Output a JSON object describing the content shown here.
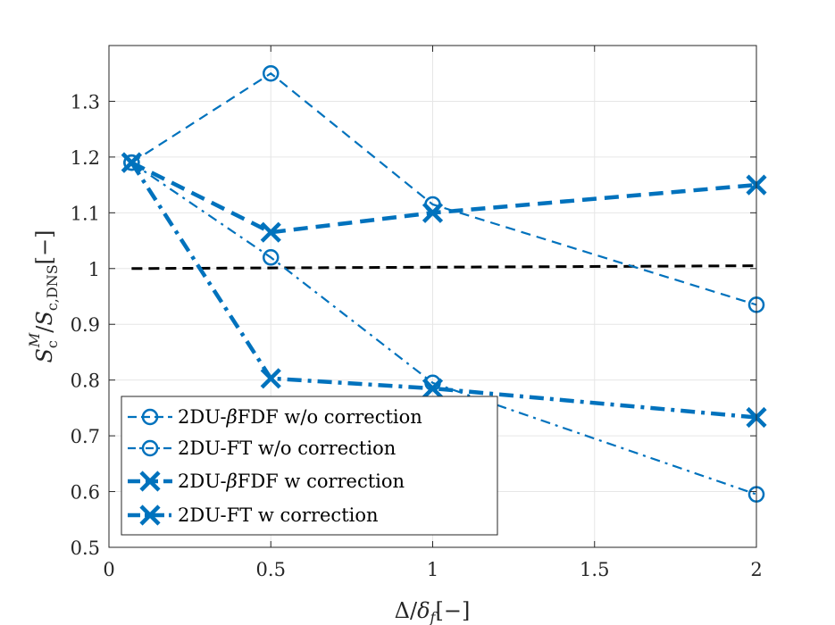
{
  "chart_data": {
    "type": "line",
    "xlabel": "Δ/δf[−]",
    "ylabel": "Sc^M/Sc,DNS[−]",
    "xlim": [
      0,
      2
    ],
    "ylim": [
      0.5,
      1.4
    ],
    "grid": true,
    "xticks": [
      0,
      0.5,
      1,
      1.5,
      2
    ],
    "xtick_labels": [
      "0",
      "0.5",
      "1",
      "1.5",
      "2"
    ],
    "yticks": [
      0.5,
      0.6,
      0.7,
      0.8,
      0.9,
      1.0,
      1.1,
      1.2,
      1.3
    ],
    "ytick_labels": [
      "0.5",
      "0.6",
      "0.7",
      "0.8",
      "0.9",
      "1",
      "1.1",
      "1.2",
      "1.3"
    ],
    "legend_position": "bottom-left",
    "reference_line": {
      "x": [
        0.07,
        2
      ],
      "y": [
        1.0,
        1.005
      ],
      "color": "#000000",
      "style": "dashed"
    },
    "series": [
      {
        "name": "2DU-βFDF w/o correction",
        "marker": "circle",
        "style": "dashed",
        "width": "thin",
        "color": "#0072BD",
        "x": [
          0.07,
          0.5,
          1,
          2
        ],
        "y": [
          1.19,
          1.35,
          1.115,
          0.935
        ]
      },
      {
        "name": "2DU-FT w/o correction",
        "marker": "circle",
        "style": "dashdot",
        "width": "thin",
        "color": "#0072BD",
        "x": [
          0.07,
          0.5,
          1,
          2
        ],
        "y": [
          1.19,
          1.02,
          0.795,
          0.595
        ]
      },
      {
        "name": "2DU-βFDF w correction",
        "marker": "cross",
        "style": "dashed",
        "width": "thick",
        "color": "#0072BD",
        "x": [
          0.07,
          0.5,
          1,
          2
        ],
        "y": [
          1.19,
          1.065,
          1.1,
          1.15
        ]
      },
      {
        "name": "2DU-FT w correction",
        "marker": "cross",
        "style": "dashdot",
        "width": "thick",
        "color": "#0072BD",
        "x": [
          0.07,
          0.5,
          1,
          2
        ],
        "y": [
          1.19,
          0.803,
          0.785,
          0.733
        ]
      }
    ]
  }
}
